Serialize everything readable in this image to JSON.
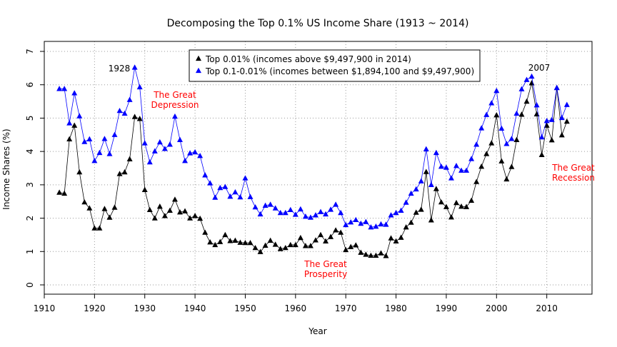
{
  "chart_data": {
    "type": "line",
    "title": "Decomposing the Top 0.1% US Income Share (1913 ~ 2014)",
    "xlabel": "Year",
    "ylabel": "Income Shares (%)",
    "xlim": [
      1910,
      2015
    ],
    "ylim": [
      0,
      7
    ],
    "x_ticks": [
      1910,
      1920,
      1930,
      1940,
      1950,
      1960,
      1970,
      1980,
      1990,
      2000,
      2010
    ],
    "y_ticks": [
      0,
      1,
      2,
      3,
      4,
      5,
      6,
      7
    ],
    "grid": true,
    "legend_position": "top-center",
    "x": [
      1913,
      1914,
      1915,
      1916,
      1917,
      1918,
      1919,
      1920,
      1921,
      1922,
      1923,
      1924,
      1925,
      1926,
      1927,
      1928,
      1929,
      1930,
      1931,
      1932,
      1933,
      1934,
      1935,
      1936,
      1937,
      1938,
      1939,
      1940,
      1941,
      1942,
      1943,
      1944,
      1945,
      1946,
      1947,
      1948,
      1949,
      1950,
      1951,
      1952,
      1953,
      1954,
      1955,
      1956,
      1957,
      1958,
      1959,
      1960,
      1961,
      1962,
      1963,
      1964,
      1965,
      1966,
      1967,
      1968,
      1969,
      1970,
      1971,
      1972,
      1973,
      1974,
      1975,
      1976,
      1977,
      1978,
      1979,
      1980,
      1981,
      1982,
      1983,
      1984,
      1985,
      1986,
      1987,
      1988,
      1989,
      1990,
      1991,
      1992,
      1993,
      1994,
      1995,
      1996,
      1997,
      1998,
      1999,
      2000,
      2001,
      2002,
      2003,
      2004,
      2005,
      2006,
      2007,
      2008,
      2009,
      2010,
      2011,
      2012,
      2013,
      2014
    ],
    "series": [
      {
        "name": "Top 0.01% (incomes above $9,497,900 in 2014)",
        "color": "#000000",
        "values": [
          2.77,
          2.74,
          4.37,
          4.78,
          3.38,
          2.48,
          2.3,
          1.7,
          1.7,
          2.28,
          2.02,
          2.32,
          3.33,
          3.38,
          3.77,
          5.04,
          4.98,
          2.85,
          2.25,
          2.0,
          2.35,
          2.07,
          2.23,
          2.56,
          2.18,
          2.21,
          2.0,
          2.07,
          1.99,
          1.57,
          1.28,
          1.2,
          1.29,
          1.5,
          1.32,
          1.33,
          1.27,
          1.26,
          1.26,
          1.11,
          0.99,
          1.18,
          1.33,
          1.21,
          1.08,
          1.11,
          1.2,
          1.2,
          1.41,
          1.17,
          1.17,
          1.34,
          1.5,
          1.31,
          1.44,
          1.64,
          1.57,
          1.05,
          1.14,
          1.19,
          0.97,
          0.91,
          0.88,
          0.88,
          0.95,
          0.87,
          1.4,
          1.31,
          1.42,
          1.73,
          1.87,
          2.17,
          2.26,
          3.39,
          1.94,
          2.88,
          2.48,
          2.34,
          2.03,
          2.46,
          2.35,
          2.34,
          2.53,
          3.09,
          3.55,
          3.93,
          4.25,
          5.09,
          3.71,
          3.17,
          3.54,
          4.35,
          5.11,
          5.5,
          6.05,
          5.12,
          3.9,
          4.78,
          4.34,
          5.91,
          4.49,
          4.9
        ]
      },
      {
        "name": "Top 0.1-0.01% (incomes between $1,894,100 and $9,497,900)",
        "color": "#0000ff",
        "values": [
          5.88,
          5.88,
          4.85,
          5.75,
          5.06,
          4.29,
          4.37,
          3.72,
          3.96,
          4.38,
          3.93,
          4.5,
          5.22,
          5.14,
          5.55,
          6.52,
          5.93,
          4.25,
          3.68,
          4.01,
          4.28,
          4.08,
          4.21,
          5.05,
          4.35,
          3.72,
          3.95,
          3.98,
          3.87,
          3.29,
          3.05,
          2.62,
          2.91,
          2.94,
          2.65,
          2.78,
          2.63,
          3.2,
          2.64,
          2.33,
          2.12,
          2.38,
          2.41,
          2.3,
          2.16,
          2.16,
          2.25,
          2.11,
          2.27,
          2.05,
          2.02,
          2.09,
          2.19,
          2.12,
          2.26,
          2.41,
          2.16,
          1.8,
          1.88,
          1.95,
          1.84,
          1.89,
          1.73,
          1.75,
          1.82,
          1.81,
          2.09,
          2.16,
          2.23,
          2.47,
          2.74,
          2.87,
          3.11,
          4.07,
          3.0,
          3.96,
          3.55,
          3.52,
          3.2,
          3.57,
          3.43,
          3.43,
          3.78,
          4.21,
          4.7,
          5.1,
          5.45,
          5.82,
          4.69,
          4.23,
          4.38,
          5.14,
          5.87,
          6.15,
          6.25,
          5.39,
          4.43,
          4.92,
          4.95,
          5.91,
          5.01,
          5.4
        ]
      }
    ],
    "annotations": [
      {
        "text": "1928",
        "color": "#000000"
      },
      {
        "text": "2007",
        "color": "#000000"
      },
      {
        "text": "The Great Depression",
        "lines": [
          "The Great",
          "Depression"
        ],
        "color": "#ff0000"
      },
      {
        "text": "The Great Prosperity",
        "lines": [
          "The Great",
          "Prosperity"
        ],
        "color": "#ff0000"
      },
      {
        "text": "The Great Recession",
        "lines": [
          "The Great",
          "Recession"
        ],
        "color": "#ff0000"
      }
    ]
  }
}
